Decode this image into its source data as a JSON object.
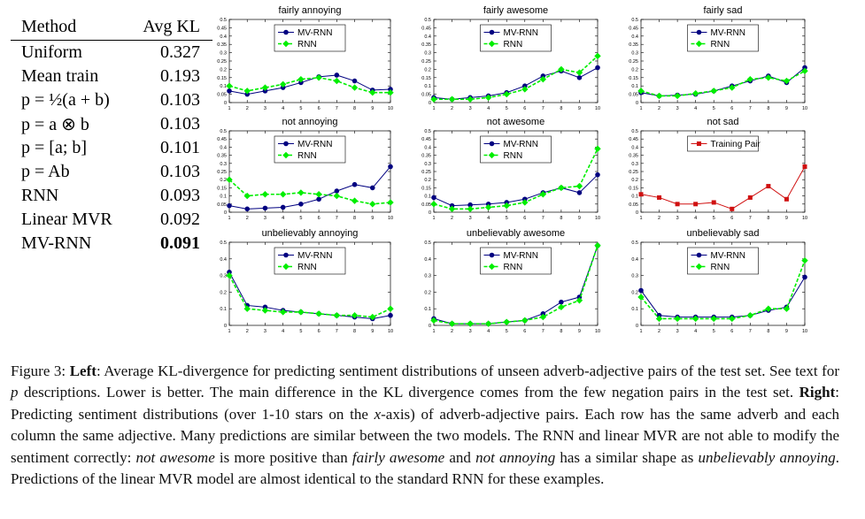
{
  "table": {
    "header": [
      "Method",
      "Avg KL"
    ],
    "rows": [
      [
        "Uniform",
        0.327
      ],
      [
        "Mean train",
        0.193
      ],
      [
        "p = ½(a + b)",
        0.103
      ],
      [
        "p = a ⊗ b",
        0.103
      ],
      [
        "p = [a; b]",
        0.101
      ],
      [
        "p = Ab",
        0.103
      ],
      [
        "RNN",
        0.093
      ],
      [
        "Linear MVR",
        0.092
      ],
      [
        "MV-RNN",
        0.091
      ]
    ]
  },
  "chart_data": [
    {
      "type": "line",
      "title": "fairly annoying",
      "x": [
        1,
        2,
        3,
        4,
        5,
        6,
        7,
        8,
        9,
        10
      ],
      "xlim": [
        1,
        10
      ],
      "xticks": [
        1,
        2,
        3,
        4,
        5,
        6,
        7,
        8,
        9,
        10
      ],
      "ylim": [
        0,
        0.5
      ],
      "yticks": [
        0,
        0.05,
        0.1,
        0.15,
        0.2,
        0.25,
        0.3,
        0.35,
        0.4,
        0.45,
        0.5
      ],
      "legend": "upper center",
      "series": [
        {
          "name": "MV-RNN",
          "color": "#000080",
          "marker": "circle",
          "dashed": false,
          "values": [
            0.07,
            0.05,
            0.07,
            0.09,
            0.12,
            0.155,
            0.165,
            0.13,
            0.075,
            0.08
          ]
        },
        {
          "name": "RNN",
          "color": "#00ee00",
          "marker": "diamond",
          "dashed": true,
          "values": [
            0.1,
            0.07,
            0.09,
            0.11,
            0.14,
            0.15,
            0.13,
            0.09,
            0.06,
            0.06
          ]
        }
      ]
    },
    {
      "type": "line",
      "title": "fairly awesome",
      "x": [
        1,
        2,
        3,
        4,
        5,
        6,
        7,
        8,
        9,
        10
      ],
      "xlim": [
        1,
        10
      ],
      "xticks": [
        1,
        2,
        3,
        4,
        5,
        6,
        7,
        8,
        9,
        10
      ],
      "ylim": [
        0,
        0.5
      ],
      "yticks": [
        0,
        0.05,
        0.1,
        0.15,
        0.2,
        0.25,
        0.3,
        0.35,
        0.4,
        0.45,
        0.5
      ],
      "legend": "upper center",
      "series": [
        {
          "name": "MV-RNN",
          "color": "#000080",
          "marker": "circle",
          "dashed": false,
          "values": [
            0.03,
            0.02,
            0.03,
            0.04,
            0.06,
            0.1,
            0.16,
            0.19,
            0.15,
            0.21
          ]
        },
        {
          "name": "RNN",
          "color": "#00ee00",
          "marker": "diamond",
          "dashed": true,
          "values": [
            0.02,
            0.02,
            0.02,
            0.03,
            0.05,
            0.08,
            0.14,
            0.2,
            0.18,
            0.28
          ]
        }
      ]
    },
    {
      "type": "line",
      "title": "fairly sad",
      "x": [
        1,
        2,
        3,
        4,
        5,
        6,
        7,
        8,
        9,
        10
      ],
      "xlim": [
        1,
        10
      ],
      "xticks": [
        1,
        2,
        3,
        4,
        5,
        6,
        7,
        8,
        9,
        10
      ],
      "ylim": [
        0,
        0.5
      ],
      "yticks": [
        0,
        0.05,
        0.1,
        0.15,
        0.2,
        0.25,
        0.3,
        0.35,
        0.4,
        0.45,
        0.5
      ],
      "legend": "upper center",
      "series": [
        {
          "name": "MV-RNN",
          "color": "#000080",
          "marker": "circle",
          "dashed": false,
          "values": [
            0.06,
            0.04,
            0.045,
            0.05,
            0.07,
            0.1,
            0.13,
            0.16,
            0.12,
            0.21
          ]
        },
        {
          "name": "RNN",
          "color": "#00ee00",
          "marker": "diamond",
          "dashed": true,
          "values": [
            0.07,
            0.04,
            0.04,
            0.055,
            0.07,
            0.09,
            0.14,
            0.15,
            0.13,
            0.19
          ]
        }
      ]
    },
    {
      "type": "line",
      "title": "not annoying",
      "x": [
        1,
        2,
        3,
        4,
        5,
        6,
        7,
        8,
        9,
        10
      ],
      "xlim": [
        1,
        10
      ],
      "xticks": [
        1,
        2,
        3,
        4,
        5,
        6,
        7,
        8,
        9,
        10
      ],
      "ylim": [
        0,
        0.5
      ],
      "yticks": [
        0,
        0.05,
        0.1,
        0.15,
        0.2,
        0.25,
        0.3,
        0.35,
        0.4,
        0.45,
        0.5
      ],
      "legend": "upper center",
      "series": [
        {
          "name": "MV-RNN",
          "color": "#000080",
          "marker": "circle",
          "dashed": false,
          "values": [
            0.04,
            0.02,
            0.025,
            0.03,
            0.05,
            0.08,
            0.13,
            0.17,
            0.15,
            0.28
          ]
        },
        {
          "name": "RNN",
          "color": "#00ee00",
          "marker": "diamond",
          "dashed": true,
          "values": [
            0.2,
            0.1,
            0.11,
            0.11,
            0.12,
            0.11,
            0.1,
            0.07,
            0.05,
            0.06
          ]
        }
      ]
    },
    {
      "type": "line",
      "title": "not awesome",
      "x": [
        1,
        2,
        3,
        4,
        5,
        6,
        7,
        8,
        9,
        10
      ],
      "xlim": [
        1,
        10
      ],
      "xticks": [
        1,
        2,
        3,
        4,
        5,
        6,
        7,
        8,
        9,
        10
      ],
      "ylim": [
        0,
        0.5
      ],
      "yticks": [
        0,
        0.05,
        0.1,
        0.15,
        0.2,
        0.25,
        0.3,
        0.35,
        0.4,
        0.45,
        0.5
      ],
      "legend": "upper center",
      "series": [
        {
          "name": "MV-RNN",
          "color": "#000080",
          "marker": "circle",
          "dashed": false,
          "values": [
            0.09,
            0.04,
            0.045,
            0.05,
            0.06,
            0.08,
            0.12,
            0.15,
            0.12,
            0.23
          ]
        },
        {
          "name": "RNN",
          "color": "#00ee00",
          "marker": "diamond",
          "dashed": true,
          "values": [
            0.05,
            0.02,
            0.02,
            0.03,
            0.04,
            0.06,
            0.11,
            0.15,
            0.16,
            0.39
          ]
        }
      ]
    },
    {
      "type": "line",
      "title": "not sad",
      "x": [
        1,
        2,
        3,
        4,
        5,
        6,
        7,
        8,
        9,
        10
      ],
      "xlim": [
        1,
        10
      ],
      "xticks": [
        1,
        2,
        3,
        4,
        5,
        6,
        7,
        8,
        9,
        10
      ],
      "ylim": [
        0,
        0.5
      ],
      "yticks": [
        0,
        0.05,
        0.1,
        0.15,
        0.2,
        0.25,
        0.3,
        0.35,
        0.4,
        0.45,
        0.5
      ],
      "legend": "upper center",
      "series": [
        {
          "name": "Training Pair",
          "color": "#d01010",
          "marker": "square",
          "dashed": false,
          "values": [
            0.11,
            0.09,
            0.05,
            0.05,
            0.06,
            0.02,
            0.09,
            0.16,
            0.08,
            0.28
          ]
        }
      ]
    },
    {
      "type": "line",
      "title": "unbelievably annoying",
      "x": [
        1,
        2,
        3,
        4,
        5,
        6,
        7,
        8,
        9,
        10
      ],
      "xlim": [
        1,
        10
      ],
      "xticks": [
        1,
        2,
        3,
        4,
        5,
        6,
        7,
        8,
        9,
        10
      ],
      "ylim": [
        0,
        0.5
      ],
      "yticks": [
        0,
        0.1,
        0.2,
        0.3,
        0.4,
        0.5
      ],
      "legend": "upper center",
      "series": [
        {
          "name": "MV-RNN",
          "color": "#000080",
          "marker": "circle",
          "dashed": false,
          "values": [
            0.32,
            0.12,
            0.11,
            0.09,
            0.08,
            0.07,
            0.06,
            0.05,
            0.04,
            0.06
          ]
        },
        {
          "name": "RNN",
          "color": "#00ee00",
          "marker": "diamond",
          "dashed": true,
          "values": [
            0.3,
            0.1,
            0.09,
            0.08,
            0.08,
            0.07,
            0.06,
            0.06,
            0.05,
            0.1
          ]
        }
      ]
    },
    {
      "type": "line",
      "title": "unbelievably awesome",
      "x": [
        1,
        2,
        3,
        4,
        5,
        6,
        7,
        8,
        9,
        10
      ],
      "xlim": [
        1,
        10
      ],
      "xticks": [
        1,
        2,
        3,
        4,
        5,
        6,
        7,
        8,
        9,
        10
      ],
      "ylim": [
        0,
        0.5
      ],
      "yticks": [
        0,
        0.1,
        0.2,
        0.3,
        0.4,
        0.5
      ],
      "legend": "upper center",
      "series": [
        {
          "name": "MV-RNN",
          "color": "#000080",
          "marker": "circle",
          "dashed": false,
          "values": [
            0.04,
            0.01,
            0.01,
            0.01,
            0.02,
            0.03,
            0.07,
            0.14,
            0.17,
            0.48
          ]
        },
        {
          "name": "RNN",
          "color": "#00ee00",
          "marker": "diamond",
          "dashed": true,
          "values": [
            0.03,
            0.01,
            0.01,
            0.01,
            0.02,
            0.03,
            0.05,
            0.11,
            0.15,
            0.48
          ]
        }
      ]
    },
    {
      "type": "line",
      "title": "unbelievably sad",
      "x": [
        1,
        2,
        3,
        4,
        5,
        6,
        7,
        8,
        9,
        10
      ],
      "xlim": [
        1,
        10
      ],
      "xticks": [
        1,
        2,
        3,
        4,
        5,
        6,
        7,
        8,
        9,
        10
      ],
      "ylim": [
        0,
        0.5
      ],
      "yticks": [
        0,
        0.1,
        0.2,
        0.3,
        0.4,
        0.5
      ],
      "legend": "upper center",
      "series": [
        {
          "name": "MV-RNN",
          "color": "#000080",
          "marker": "circle",
          "dashed": false,
          "values": [
            0.21,
            0.06,
            0.05,
            0.05,
            0.05,
            0.05,
            0.06,
            0.09,
            0.11,
            0.29
          ]
        },
        {
          "name": "RNN",
          "color": "#00ee00",
          "marker": "diamond",
          "dashed": true,
          "values": [
            0.17,
            0.04,
            0.04,
            0.04,
            0.04,
            0.04,
            0.06,
            0.1,
            0.1,
            0.39
          ]
        }
      ]
    }
  ],
  "caption": [
    {
      "text": "Figure 3: ",
      "style": "normal"
    },
    {
      "text": "Left",
      "style": "bold"
    },
    {
      "text": ": Average KL-divergence for predicting sentiment distributions of unseen adverb-adjective pairs of the test set. See text for ",
      "style": "normal"
    },
    {
      "text": "p",
      "style": "italic"
    },
    {
      "text": " descriptions. Lower is better. The main difference in the KL divergence comes from the few negation pairs in the test set. ",
      "style": "normal"
    },
    {
      "text": "Right",
      "style": "bold"
    },
    {
      "text": ": Predicting sentiment distributions (over 1-10 stars on the ",
      "style": "normal"
    },
    {
      "text": "x",
      "style": "italic"
    },
    {
      "text": "-axis) of adverb-adjective pairs. Each row has the same adverb and each column the same adjective. Many predictions are similar between the two models. The RNN and linear MVR are not able to modify the sentiment correctly: ",
      "style": "normal"
    },
    {
      "text": "not awesome",
      "style": "italic"
    },
    {
      "text": " is more positive than ",
      "style": "normal"
    },
    {
      "text": "fairly awesome",
      "style": "italic"
    },
    {
      "text": " and ",
      "style": "normal"
    },
    {
      "text": "not annoying",
      "style": "italic"
    },
    {
      "text": " has a similar shape as ",
      "style": "normal"
    },
    {
      "text": "unbelievably annoying",
      "style": "italic"
    },
    {
      "text": ". Predictions of the linear MVR model are almost identical to the standard RNN for these examples.",
      "style": "normal"
    }
  ]
}
